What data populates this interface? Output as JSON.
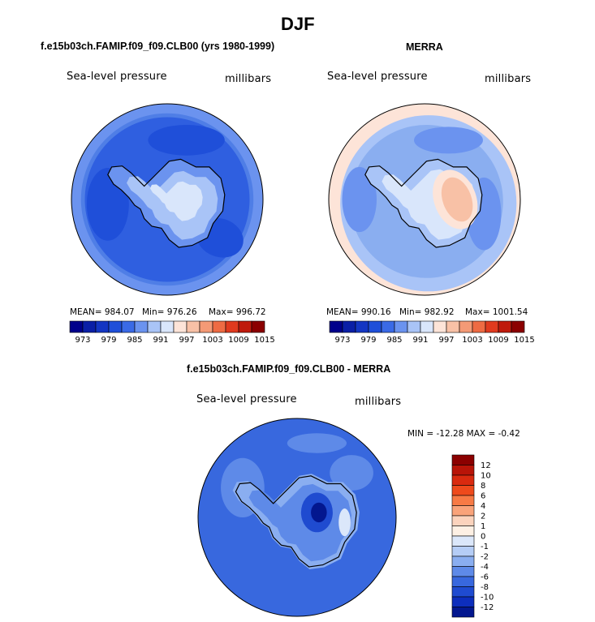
{
  "page": {
    "title": "DJF"
  },
  "chart_data": [
    {
      "type": "heatmap",
      "title": "f.e15b03ch.FAMIP.f09_f09.CLB00 (yrs 1980-1999)",
      "variable": "Sea-level pressure",
      "units": "millibars",
      "stats": {
        "mean_label": "MEAN= 984.07",
        "min_label": "Min= 976.26",
        "max_label": "Max= 996.72"
      },
      "mean": 984.07,
      "min": 976.26,
      "max": 996.72,
      "colorbar_ticks": [
        "973",
        "979",
        "985",
        "991",
        "997",
        "1003",
        "1009",
        "1015"
      ]
    },
    {
      "type": "heatmap",
      "title": "MERRA",
      "variable": "Sea-level pressure",
      "units": "millibars",
      "stats": {
        "mean_label": "MEAN= 990.16",
        "min_label": "Min= 982.92",
        "max_label": "Max= 1001.54"
      },
      "mean": 990.16,
      "min": 982.92,
      "max": 1001.54,
      "colorbar_ticks": [
        "973",
        "979",
        "985",
        "991",
        "997",
        "1003",
        "1009",
        "1015"
      ]
    },
    {
      "type": "heatmap",
      "title": "f.e15b03ch.FAMIP.f09_f09.CLB00 - MERRA",
      "variable": "Sea-level pressure",
      "units": "millibars",
      "minmax_label": "MIN = -12.28 MAX =  -0.42",
      "min": -12.28,
      "max": -0.42,
      "colorbar_ticks": [
        "12",
        "10",
        "8",
        "6",
        "4",
        "2",
        "1",
        "0",
        "-1",
        "-2",
        "-4",
        "-6",
        "-8",
        "-10",
        "-12"
      ]
    }
  ],
  "colors": {
    "abs_scale": [
      "#00008b",
      "#0a1fa6",
      "#1436c3",
      "#1f4fd9",
      "#3a6ae6",
      "#6b93ef",
      "#a9c4f7",
      "#d9e6fb",
      "#fde4d8",
      "#f8c1a6",
      "#f49a76",
      "#ee6b43",
      "#e03a1e",
      "#bf1a0c",
      "#8b0000"
    ],
    "diff_scale": [
      "#8b0000",
      "#b81408",
      "#d92a0f",
      "#ee4a1c",
      "#f77a45",
      "#f9a37a",
      "#fbd3bd",
      "#fdf0e4",
      "#dbe7fa",
      "#b5cdf6",
      "#8aaef0",
      "#5e8ae8",
      "#3868de",
      "#1f4bd0",
      "#0d2ebd",
      "#03178f"
    ]
  }
}
